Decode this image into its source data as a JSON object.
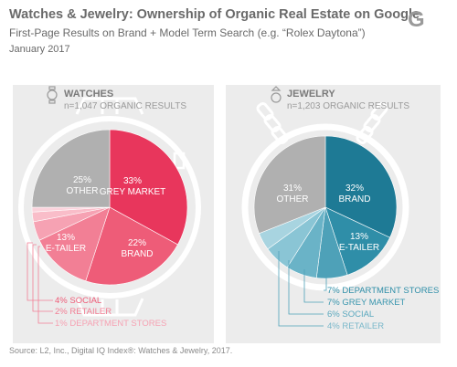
{
  "header": {
    "title": "Watches & Jewelry: Ownership of Organic Real Estate on Google",
    "subtitle": "First-Page Results on Brand + Model Term Search (e.g. “Rolex Daytona”)",
    "date": "January 2017",
    "logo": "G"
  },
  "source": "Source: L2, Inc., Digital IQ Index®: Watches & Jewelry, 2017.",
  "chart_data": [
    {
      "type": "pie",
      "panel": "WATCHES",
      "count_label": "n=1,047 ORGANIC RESULTS",
      "icon": "watch-icon",
      "slices": [
        {
          "label": "GREY MARKET",
          "value": 33,
          "display": "33%",
          "color": "#e8365c"
        },
        {
          "label": "BRAND",
          "value": 22,
          "display": "22%",
          "color": "#ee5c78"
        },
        {
          "label": "E-TAILER",
          "value": 13,
          "display": "13%",
          "color": "#f27f95"
        },
        {
          "label": "SOCIAL",
          "value": 4,
          "display": "4%",
          "color": "#f6a2b3"
        },
        {
          "label": "RETAILER",
          "value": 2,
          "display": "2%",
          "color": "#f9bdc9"
        },
        {
          "label": "DEPARTMENT STORES",
          "value": 1,
          "display": "1%",
          "color": "#fbd3dc"
        },
        {
          "label": "OTHER",
          "value": 25,
          "display": "25%",
          "color": "#b0b0b0"
        }
      ],
      "callouts": [
        "4% SOCIAL",
        "2% RETAILER",
        "1% DEPARTMENT STORES"
      ]
    },
    {
      "type": "pie",
      "panel": "JEWELRY",
      "count_label": "n=1,203 ORGANIC RESULTS",
      "icon": "ring-icon",
      "slices": [
        {
          "label": "BRAND",
          "value": 32,
          "display": "32%",
          "color": "#1e7a95"
        },
        {
          "label": "E-TAILER",
          "value": 13,
          "display": "13%",
          "color": "#2f8ea8"
        },
        {
          "label": "DEPARTMENT STORES",
          "value": 7,
          "display": "7%",
          "color": "#4ea1b8"
        },
        {
          "label": "GREY MARKET",
          "value": 7,
          "display": "7%",
          "color": "#6ab3c7"
        },
        {
          "label": "SOCIAL",
          "value": 6,
          "display": "6%",
          "color": "#8ac5d5"
        },
        {
          "label": "RETAILER",
          "value": 4,
          "display": "4%",
          "color": "#a8d4e0"
        },
        {
          "label": "OTHER",
          "value": 31,
          "display": "31%",
          "color": "#b0b0b0"
        }
      ],
      "callouts": [
        "7% DEPARTMENT STORES",
        "7% GREY MARKET",
        "6% SOCIAL",
        "4% RETAILER"
      ]
    }
  ]
}
